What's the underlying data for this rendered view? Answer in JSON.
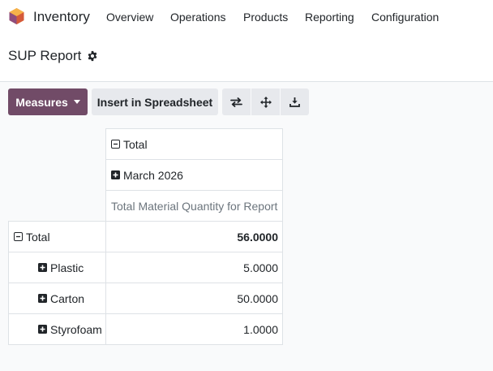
{
  "app": {
    "name": "Inventory",
    "logo_icon": "odoo-app-hexagon-icon",
    "menu": [
      "Overview",
      "Operations",
      "Products",
      "Reporting",
      "Configuration"
    ]
  },
  "page": {
    "title": "SUP Report",
    "settings_icon": "gear-icon"
  },
  "toolbar": {
    "measures_label": "Measures",
    "insert_label": "Insert in Spreadsheet",
    "icons": [
      "flip-axis-icon",
      "expand-all-icon",
      "download-icon"
    ]
  },
  "pivot": {
    "col_header_total": "Total",
    "col_header_month": "March 2026",
    "measure_label": "Total Material Quantity for Report",
    "row_total_label": "Total",
    "row_total_value": "56.0000",
    "rows": [
      {
        "label": "Plastic",
        "value": "5.0000"
      },
      {
        "label": "Carton",
        "value": "50.0000"
      },
      {
        "label": "Styrofoam",
        "value": "1.0000"
      }
    ]
  },
  "colors": {
    "primary": "#714b67",
    "secondary_button": "#e7e9ed",
    "border": "#dee2e6",
    "muted_text": "#6c757d"
  }
}
